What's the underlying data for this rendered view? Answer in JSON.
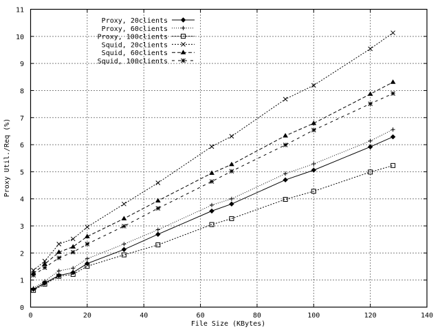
{
  "chart_data": {
    "type": "line",
    "title": "",
    "xlabel": "File Size (KBytes)",
    "ylabel": "Proxy Util./Req (%)",
    "xlim": [
      0,
      140
    ],
    "ylim": [
      0,
      11
    ],
    "xticks": [
      0,
      20,
      40,
      60,
      80,
      100,
      120,
      140
    ],
    "yticks": [
      0,
      1,
      2,
      3,
      4,
      5,
      6,
      7,
      8,
      9,
      10,
      11
    ],
    "grid": true,
    "legend_position": "upper-left (inside)",
    "x": [
      1,
      5,
      10,
      15,
      20,
      33,
      45,
      64,
      71,
      90,
      100,
      120,
      128
    ],
    "series": [
      {
        "name": "Proxy, 20clients",
        "line": "solid",
        "marker": "diamond",
        "values": [
          0.66,
          0.89,
          1.17,
          1.28,
          1.61,
          2.13,
          2.69,
          3.55,
          3.81,
          4.7,
          5.06,
          5.92,
          6.29
        ]
      },
      {
        "name": "Proxy, 60clients",
        "line": "dotted",
        "marker": "plus",
        "values": [
          0.7,
          0.96,
          1.34,
          1.44,
          1.79,
          2.33,
          2.86,
          3.77,
          4.0,
          4.93,
          5.29,
          6.14,
          6.56
        ]
      },
      {
        "name": "Proxy, 100clients",
        "line": "short-dash",
        "marker": "square",
        "values": [
          0.62,
          0.85,
          1.14,
          1.21,
          1.51,
          1.93,
          2.3,
          3.05,
          3.27,
          3.98,
          4.28,
          4.99,
          5.23
        ]
      },
      {
        "name": "Squid, 20clients",
        "line": "short-dash",
        "marker": "cross",
        "values": [
          1.36,
          1.7,
          2.33,
          2.52,
          2.96,
          3.81,
          4.59,
          5.93,
          6.31,
          7.68,
          8.19,
          9.54,
          10.13
        ]
      },
      {
        "name": "Squid, 60clients",
        "line": "long-dash",
        "marker": "triangle",
        "values": [
          1.25,
          1.59,
          2.03,
          2.23,
          2.61,
          3.27,
          3.93,
          4.95,
          5.27,
          6.33,
          6.79,
          7.87,
          8.31
        ]
      },
      {
        "name": "Squid, 100clients",
        "line": "long-dash-gap",
        "marker": "star",
        "values": [
          1.18,
          1.46,
          1.82,
          2.03,
          2.33,
          2.99,
          3.65,
          4.64,
          5.02,
          5.99,
          6.54,
          7.51,
          7.89
        ]
      }
    ]
  },
  "colors": {
    "background": "#ffffff",
    "foreground": "#000000"
  }
}
